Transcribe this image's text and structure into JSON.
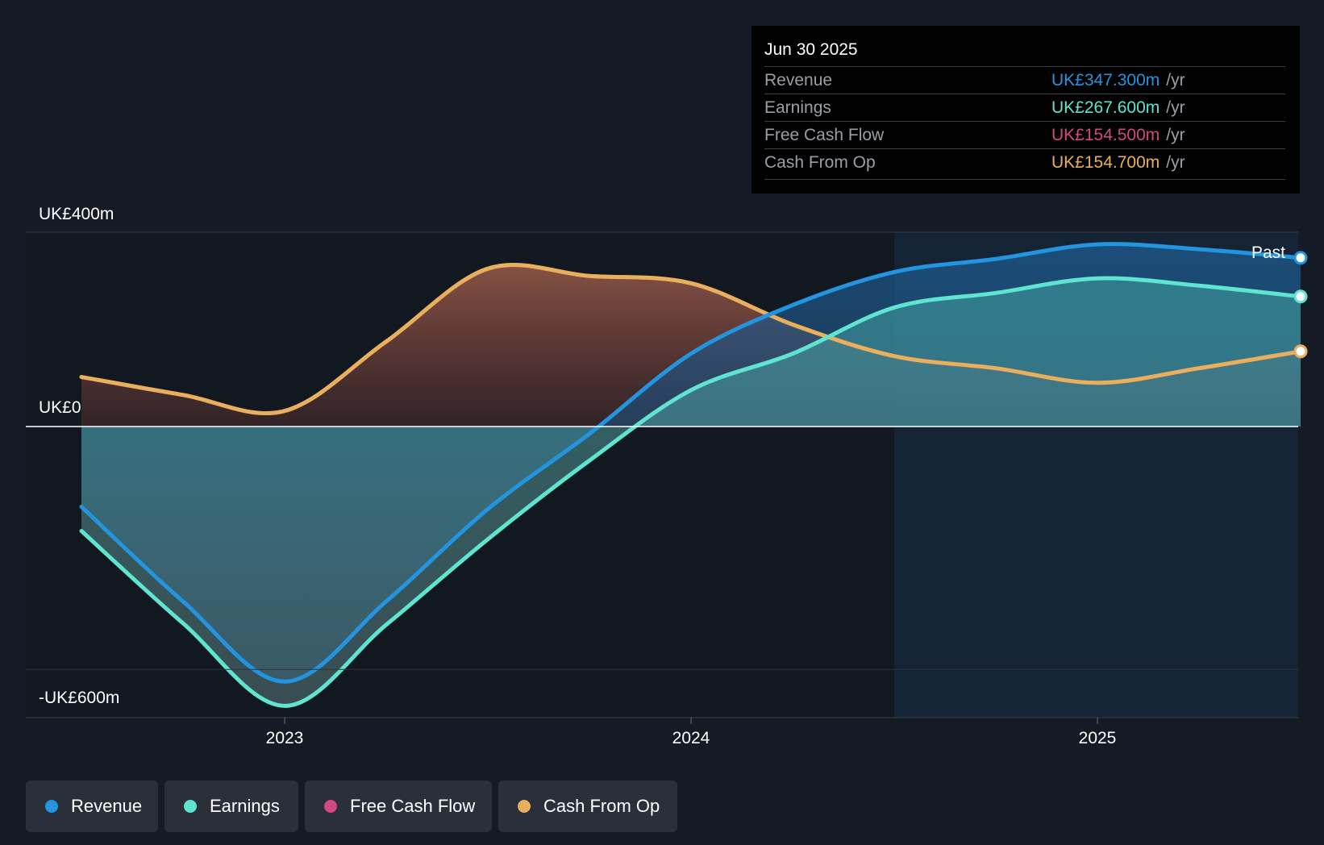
{
  "colors": {
    "background": "#151b24",
    "revenue": "#2394df",
    "earnings": "#5ee4d0",
    "free_cash_flow": "#d4477f",
    "cash_from_op": "#e8b05c"
  },
  "tooltip": {
    "date": "Jun 30 2025",
    "rows": [
      {
        "label": "Revenue",
        "value": "UK£347.300m",
        "unit": "/yr"
      },
      {
        "label": "Earnings",
        "value": "UK£267.600m",
        "unit": "/yr"
      },
      {
        "label": "Free Cash Flow",
        "value": "UK£154.500m",
        "unit": "/yr"
      },
      {
        "label": "Cash From Op",
        "value": "UK£154.700m",
        "unit": "/yr"
      }
    ]
  },
  "legend": [
    {
      "label": "Revenue",
      "color": "#2394df"
    },
    {
      "label": "Earnings",
      "color": "#5ee4d0"
    },
    {
      "label": "Free Cash Flow",
      "color": "#d4477f"
    },
    {
      "label": "Cash From Op",
      "color": "#e8b05c"
    }
  ],
  "chart_data": {
    "type": "area",
    "title": "",
    "xlabel": "",
    "ylabel": "",
    "y_tick_labels": [
      {
        "value": 400,
        "label": "UK£400m"
      },
      {
        "value": 0,
        "label": "UK£0"
      },
      {
        "value": -600,
        "label": "-UK£600m"
      }
    ],
    "x_tick_labels": [
      {
        "value": 2023.0,
        "label": "2023"
      },
      {
        "value": 2024.0,
        "label": "2024"
      },
      {
        "value": 2025.0,
        "label": "2025"
      }
    ],
    "xlim": [
      2022.37,
      2025.49
    ],
    "ylim": [
      -600,
      400
    ],
    "gridlines": [
      400,
      -500
    ],
    "past_divider_x": 2024.5,
    "past_label": "Past",
    "series": [
      {
        "name": "Revenue",
        "color": "#2394df",
        "x": [
          2022.5,
          2022.75,
          2023.0,
          2023.25,
          2023.5,
          2023.75,
          2024.0,
          2024.25,
          2024.5,
          2024.75,
          2025.0,
          2025.25,
          2025.5
        ],
        "y": [
          -165,
          -360,
          -525,
          -360,
          -170,
          -15,
          150,
          250,
          318,
          345,
          375,
          365,
          347.3
        ]
      },
      {
        "name": "Earnings",
        "color": "#5ee4d0",
        "x": [
          2022.5,
          2022.75,
          2023.0,
          2023.25,
          2023.5,
          2023.75,
          2024.0,
          2024.25,
          2024.5,
          2024.75,
          2025.0,
          2025.25,
          2025.5
        ],
        "y": [
          -215,
          -405,
          -575,
          -408,
          -232,
          -70,
          75,
          150,
          245,
          275,
          305,
          290,
          267.6
        ]
      },
      {
        "name": "Free Cash Flow",
        "color": "#d4477f",
        "x": [
          2022.5,
          2022.75,
          2023.0,
          2023.25,
          2023.5,
          2023.75,
          2024.0,
          2024.25,
          2024.5,
          2024.75,
          2025.0,
          2025.25,
          2025.5
        ],
        "y": [
          102,
          65,
          32,
          175,
          325,
          310,
          295,
          210,
          145,
          120,
          90,
          120,
          154.5
        ]
      },
      {
        "name": "Cash From Op",
        "color": "#e8b05c",
        "x": [
          2022.5,
          2022.75,
          2023.0,
          2023.25,
          2023.5,
          2023.75,
          2024.0,
          2024.25,
          2024.5,
          2024.75,
          2025.0,
          2025.25,
          2025.5
        ],
        "y": [
          102,
          65,
          32,
          175,
          325,
          310,
          295,
          210,
          145,
          120,
          90,
          120,
          154.7
        ]
      }
    ]
  }
}
